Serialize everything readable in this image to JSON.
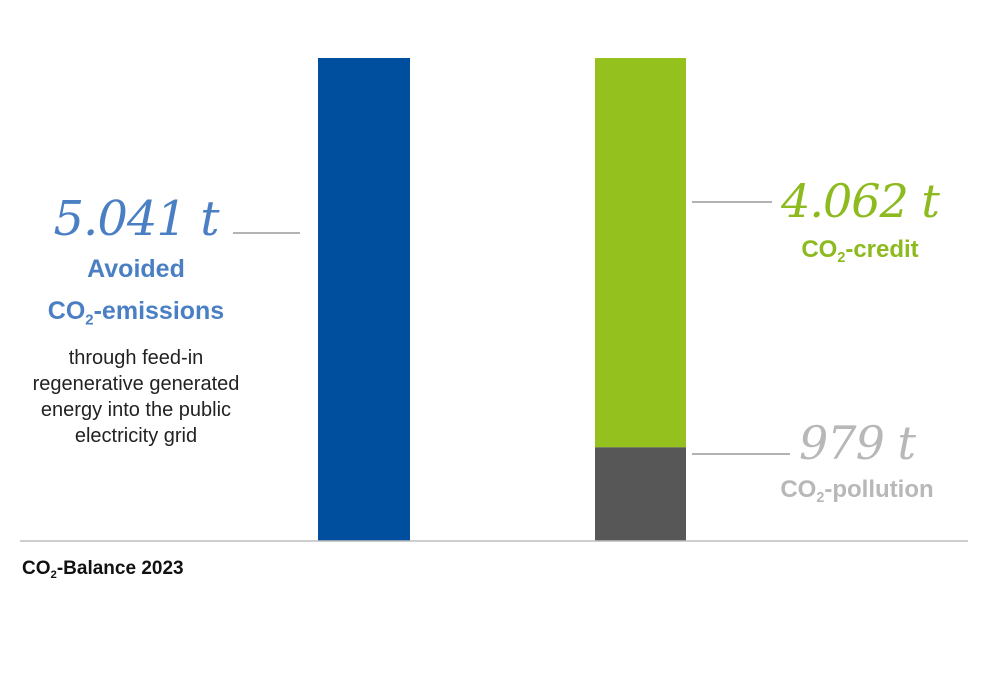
{
  "chart_data": {
    "type": "bar",
    "title": "",
    "xlabel": "",
    "ylabel": "",
    "ylim": [
      0,
      5041
    ],
    "grid": false,
    "legend": "none",
    "bars": [
      {
        "name": "avoided-emissions",
        "segments": [
          {
            "value": 5041,
            "color": "#004f9f"
          }
        ]
      },
      {
        "name": "balance",
        "segments": [
          {
            "value": 979,
            "color": "#575757"
          },
          {
            "value": 4062,
            "color": "#95c11f"
          }
        ]
      }
    ],
    "annotations": {
      "avoided": {
        "value": "5.041 t",
        "line1_pre": "Avoided",
        "line2_pre": "CO",
        "line2_sub": "2",
        "line2_post": "-emissions",
        "description": "through feed-in regenerative generated energy into the public electricity grid",
        "color": "#4b7fc3"
      },
      "credit": {
        "value": "4.062 t",
        "label_pre": "CO",
        "label_sub": "2",
        "label_post": "-credit",
        "color": "#8dba1e"
      },
      "pollution": {
        "value": "979 t",
        "label_pre": "CO",
        "label_sub": "2",
        "label_post": "-pollution",
        "color": "#b8b8b8"
      }
    },
    "footer": {
      "pre": "CO",
      "sub": "2",
      "post": "-Balance 2023"
    },
    "axis_color": "#bdbdbd",
    "leader_color": "#9a9a9a"
  }
}
